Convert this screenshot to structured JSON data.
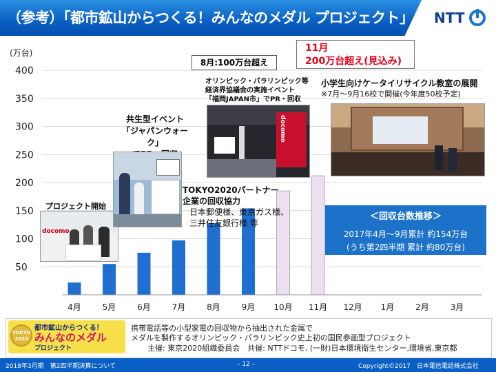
{
  "header": {
    "title": "（参考）「都市鉱山からつくる！みんなのメダル プロジェクト」",
    "logo_text": "NTT"
  },
  "chart_data": {
    "type": "bar",
    "yunit": "(万台)",
    "ylim": [
      0,
      400
    ],
    "yticks": [
      "50",
      "100",
      "150",
      "200",
      "250",
      "300",
      "350",
      "400"
    ],
    "ytick_values": [
      50,
      100,
      150,
      200,
      250,
      300,
      350,
      400
    ],
    "categories": [
      "4月",
      "5月",
      "6月",
      "7月",
      "8月",
      "9月",
      "10月",
      "11月",
      "12月",
      "1月",
      "2月",
      "3月"
    ],
    "values": [
      22,
      55,
      75,
      97,
      128,
      154,
      185,
      212,
      null,
      null,
      null,
      null
    ],
    "colors": {
      "actual": "#1e6fcf",
      "projected_fill": "#ecdfee",
      "projected_stroke": "#bda2c4",
      "alert": "#e3001b",
      "info_box": "#1c72c8"
    },
    "actual_count": 6
  },
  "callouts": {
    "start": "プロジェクト開始",
    "walk_1": "共生型イベント",
    "walk_2": "「ジャパンウォーク」",
    "walk_3": "でPR・回収",
    "partner_1": "TOKYO2020パートナー",
    "partner_2": "企業の回収協力",
    "partner_3": "日本郵便様、東京ガス様、",
    "partner_4": "三井住友銀行様 等",
    "olympic_1": "オリンピック・パラリンピック等",
    "olympic_2": "経済界協議会の実施イベント",
    "olympic_3": "「福岡JAPAN市」でPR・回収",
    "aug_box": "8月:100万台超え",
    "nov_1": "11月",
    "nov_2": "200万台超え(見込み)",
    "school_1": "小学生向けケータイリサイクル教室の展開",
    "school_2": "※7月～9月16校で開催(今年度50校予定)"
  },
  "info_box": {
    "heading": "＜回収台数推移＞",
    "line1": "2017年4月～9月累計 約154万台",
    "line2": "(うち第2四半期 累計 約80万台)"
  },
  "bottom": {
    "logo_top": "都市鉱山からつくる！",
    "logo_main": "みんなのメダル",
    "logo_sub": "プロジェクト",
    "logo_badge_1": "TOKYO",
    "logo_badge_2": "2020",
    "desc1": "携帯電話等の小型家電の回収物から抽出された金属で",
    "desc2": "メダルを製作するオリンピック・パラリンピック史上初の国民参画型プロジェクト",
    "desc3": "主催: 東京2020組織委員会　共催: NTTドコモ, (一財)日本環境衛生センター,環境省,東京都"
  },
  "photos": {
    "docomo_sign_1": "docomo",
    "docomo_sign_2": "docomo"
  },
  "footer": {
    "left": "2018年3月期　第2四半期決算について",
    "center": "– 12 –",
    "right": "Copyright©2017　日本電信電話株式会社"
  }
}
